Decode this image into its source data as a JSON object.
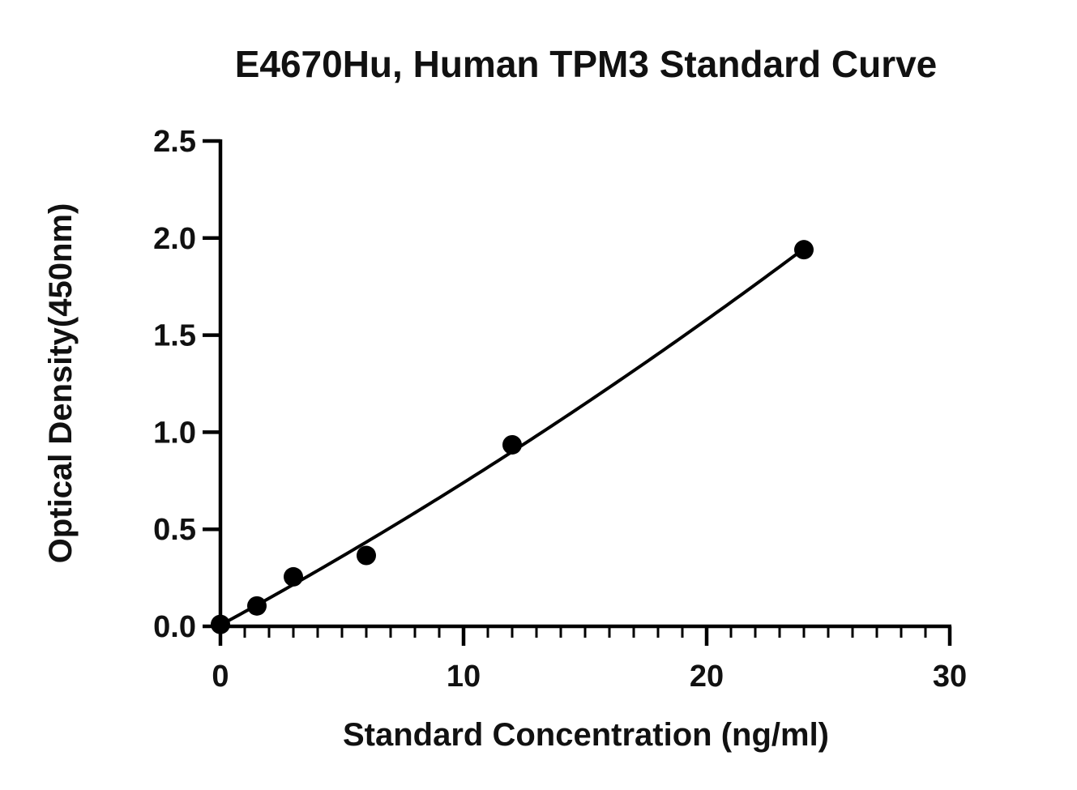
{
  "chart_data": {
    "type": "scatter",
    "title": "E4670Hu, Human TPM3 Standard Curve",
    "xlabel": "Standard Concentration (ng/ml)",
    "ylabel": "Optical Density(450nm)",
    "xlim": [
      0,
      30
    ],
    "ylim": [
      0,
      2.5
    ],
    "x_ticks": [
      "0",
      "10",
      "20",
      "30"
    ],
    "y_ticks": [
      "0.0",
      "0.5",
      "1.0",
      "1.5",
      "2.0",
      "2.5"
    ],
    "x_minor_step": 1,
    "grid": false,
    "legend": "none",
    "series": [
      {
        "x": [
          0,
          1.5,
          3,
          6,
          12,
          24
        ],
        "y": [
          0.01,
          0.105,
          0.255,
          0.365,
          0.935,
          1.94
        ],
        "marker": "filled-circle",
        "fit_curve": true
      }
    ],
    "colors": {
      "points": "#000000",
      "curve": "#000000",
      "axes": "#000000"
    }
  }
}
